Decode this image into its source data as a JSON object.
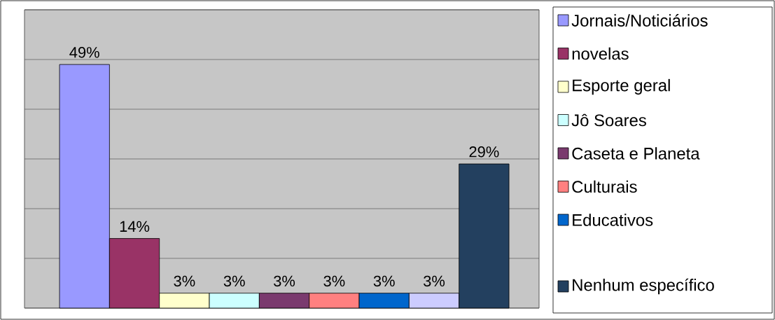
{
  "chart_data": {
    "type": "bar",
    "categories": [
      null
    ],
    "series": [
      {
        "name": "Jornais/Noticiários",
        "color": "#9999ff",
        "values": [
          49
        ],
        "value_labels": [
          "49%"
        ]
      },
      {
        "name": "novelas",
        "color": "#993366",
        "values": [
          14
        ],
        "value_labels": [
          "14%"
        ]
      },
      {
        "name": "Esporte geral",
        "color": "#ffffcc",
        "values": [
          3
        ],
        "value_labels": [
          "3%"
        ]
      },
      {
        "name": "Jô Soares",
        "color": "#ccffff",
        "values": [
          3
        ],
        "value_labels": [
          "3%"
        ]
      },
      {
        "name": "Caseta e Planeta",
        "color": "#7a3a6e",
        "values": [
          3
        ],
        "value_labels": [
          "3%"
        ]
      },
      {
        "name": "Culturais",
        "color": "#ff8080",
        "values": [
          3
        ],
        "value_labels": [
          "3%"
        ]
      },
      {
        "name": "Educativos",
        "color": "#0066cc",
        "values": [
          3
        ],
        "value_labels": [
          "3%"
        ]
      },
      {
        "color": "#ccccff",
        "values": [
          3
        ],
        "value_labels": [
          "3%"
        ]
      },
      {
        "name": "Nenhum específico",
        "color": "#23405f",
        "values": [
          29
        ],
        "value_labels": [
          "29%"
        ]
      }
    ],
    "ylim": [
      0,
      60
    ],
    "yticks": [
      {
        "value": 0,
        "label": null
      },
      {
        "value": 10,
        "label": null
      },
      {
        "value": 20,
        "label": null
      },
      {
        "value": 30,
        "label": null
      },
      {
        "value": 40,
        "label": null
      },
      {
        "value": 50,
        "label": null
      },
      {
        "value": 60,
        "label": null
      }
    ],
    "grid": "y",
    "legend": "right"
  }
}
